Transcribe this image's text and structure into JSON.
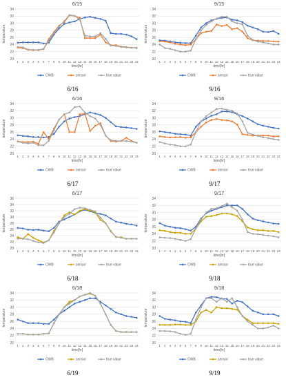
{
  "colors": {
    "CWB": "#4472c4",
    "sensor": "#ed7d31",
    "sensor_alt": "#c9a400",
    "true value": "#a5a5a5"
  },
  "chart_data": [
    {
      "type": "line",
      "title": "6/15",
      "caption": "6/16",
      "xlabel": "time[hr]",
      "ylabel": "temperature",
      "categories": [
        "1",
        "2",
        "3",
        "4",
        "5",
        "6",
        "7",
        "8",
        "9",
        "10",
        "11",
        "12",
        "13",
        "14",
        "15",
        "16",
        "17",
        "18",
        "19",
        "20",
        "21",
        "22",
        "23",
        "24"
      ],
      "ylim": [
        20,
        34
      ],
      "yticks": [
        "20",
        "22",
        "24",
        "26",
        "28",
        "30",
        "32",
        "34"
      ],
      "legend_position": "bottom",
      "grid": true,
      "sensor_color": "orange",
      "series": [
        {
          "name": "CWB",
          "values": [
            24.5,
            24.6,
            24.6,
            24.6,
            24.6,
            24.3,
            24.5,
            26.8,
            28.5,
            29.8,
            30.2,
            30.5,
            31.2,
            31.6,
            31.8,
            31.5,
            31.2,
            30.7,
            27.2,
            27.0,
            27.0,
            26.8,
            26.3,
            25.5
          ]
        },
        {
          "name": "sensor",
          "values": [
            23.1,
            23.0,
            22.5,
            22.4,
            22.4,
            22.7,
            25.5,
            27.5,
            29.3,
            30.3,
            32.2,
            32.0,
            31.5,
            25.8,
            25.8,
            25.8,
            26.8,
            24.6,
            23.8,
            23.8,
            23.4,
            23.3,
            23.1,
            23.1
          ]
        },
        {
          "name": "true value",
          "values": [
            23.3,
            23.2,
            22.6,
            22.5,
            22.5,
            22.8,
            25.0,
            27.2,
            29.0,
            30.6,
            32.3,
            32.1,
            31.0,
            26.5,
            26.3,
            26.3,
            27.2,
            25.6,
            23.7,
            23.6,
            23.3,
            23.2,
            23.1,
            23.0
          ]
        }
      ]
    },
    {
      "type": "line",
      "title": "9/15",
      "caption": "9/16",
      "xlabel": "time[hr]",
      "ylabel": "temperature",
      "categories": [
        "1",
        "2",
        "3",
        "4",
        "5",
        "6",
        "7",
        "8",
        "9",
        "10",
        "11",
        "12",
        "13",
        "14",
        "15",
        "16",
        "17",
        "18",
        "19",
        "20",
        "21",
        "22",
        "23",
        "24"
      ],
      "ylim": [
        20,
        34
      ],
      "yticks": [
        "20",
        "22",
        "24",
        "26",
        "28",
        "30",
        "32",
        "34"
      ],
      "legend_position": "bottom",
      "grid": true,
      "sensor_color": "orange",
      "series": [
        {
          "name": "CWB",
          "values": [
            25.2,
            25.1,
            24.9,
            24.6,
            24.5,
            24.4,
            24.4,
            26.5,
            28.8,
            30.0,
            30.8,
            31.2,
            31.5,
            31.6,
            31.0,
            30.8,
            30.3,
            29.3,
            28.8,
            28.3,
            27.6,
            27.5,
            27.8,
            27.0
          ]
        },
        {
          "name": "sensor",
          "values": [
            24.9,
            24.8,
            24.6,
            24.2,
            24.0,
            23.8,
            24.0,
            25.5,
            27.2,
            27.6,
            27.8,
            29.6,
            29.2,
            29.5,
            28.3,
            28.6,
            27.6,
            25.8,
            25.2,
            25.1,
            25.0,
            25.0,
            24.9,
            24.8
          ]
        },
        {
          "name": "true value",
          "values": [
            24.0,
            23.0,
            22.8,
            22.4,
            22.0,
            22.0,
            22.3,
            25.5,
            28.0,
            29.5,
            30.5,
            31.3,
            31.8,
            31.8,
            30.5,
            30.0,
            29.7,
            26.5,
            25.3,
            24.8,
            24.6,
            24.3,
            24.0,
            24.0
          ]
        }
      ]
    },
    {
      "type": "line",
      "title": "6/16",
      "caption": "6/17",
      "xlabel": "time[hr]",
      "ylabel": "temperature",
      "categories": [
        "1",
        "2",
        "3",
        "4",
        "5",
        "6",
        "7",
        "8",
        "9",
        "10",
        "11",
        "12",
        "13",
        "14",
        "15",
        "16",
        "17",
        "18",
        "19",
        "20",
        "21",
        "22",
        "23",
        "24"
      ],
      "ylim": [
        20,
        34
      ],
      "yticks": [
        "20",
        "22",
        "24",
        "26",
        "28",
        "30",
        "32",
        "34"
      ],
      "legend_position": "bottom",
      "grid": true,
      "sensor_color": "orange",
      "series": [
        {
          "name": "CWB",
          "values": [
            25.1,
            24.9,
            24.8,
            24.6,
            24.6,
            24.5,
            24.6,
            25.5,
            27.5,
            29.0,
            29.8,
            30.2,
            30.5,
            31.0,
            31.5,
            31.2,
            30.8,
            30.0,
            28.8,
            27.6,
            27.4,
            27.3,
            27.1,
            26.9
          ]
        },
        {
          "name": "sensor",
          "values": [
            23.4,
            23.2,
            23.2,
            23.3,
            22.7,
            26.0,
            24.0,
            27.0,
            29.5,
            31.0,
            26.0,
            26.0,
            31.0,
            31.2,
            26.3,
            27.8,
            28.5,
            25.0,
            23.5,
            23.3,
            23.5,
            24.4,
            23.5,
            23.0
          ]
        },
        {
          "name": "true value",
          "values": [
            23.3,
            23.0,
            22.8,
            23.0,
            22.3,
            22.3,
            23.5,
            26.5,
            29.5,
            31.0,
            31.5,
            33.0,
            33.2,
            31.5,
            30.5,
            29.8,
            28.0,
            25.0,
            23.7,
            23.5,
            23.5,
            23.5,
            23.3,
            23.0
          ]
        }
      ]
    },
    {
      "type": "line",
      "title": "9/16",
      "caption": "9/17",
      "xlabel": "time[hr]",
      "ylabel": "temperature",
      "categories": [
        "1",
        "2",
        "3",
        "4",
        "5",
        "6",
        "7",
        "8",
        "9",
        "10",
        "11",
        "12",
        "13",
        "14",
        "15",
        "16",
        "17",
        "18",
        "19",
        "20",
        "21",
        "22",
        "23",
        "24"
      ],
      "ylim": [
        20,
        34
      ],
      "yticks": [
        "20",
        "22",
        "24",
        "26",
        "28",
        "30",
        "32",
        "34"
      ],
      "legend_position": "bottom",
      "grid": true,
      "sensor_color": "orange",
      "series": [
        {
          "name": "CWB",
          "values": [
            26.2,
            26.0,
            25.8,
            25.5,
            25.4,
            25.3,
            25.0,
            27.5,
            29.0,
            29.8,
            30.6,
            31.0,
            31.8,
            31.8,
            31.6,
            31.0,
            30.5,
            29.8,
            29.0,
            28.2,
            27.8,
            27.5,
            27.2,
            27.0
          ]
        },
        {
          "name": "sensor",
          "values": [
            24.8,
            24.6,
            24.5,
            24.5,
            24.6,
            24.4,
            24.5,
            26.0,
            27.5,
            28.7,
            29.4,
            29.7,
            29.4,
            29.3,
            29.0,
            28.1,
            25.4,
            25.2,
            25.0,
            25.0,
            25.0,
            25.0,
            24.8,
            24.8
          ]
        },
        {
          "name": "true value",
          "values": [
            23.2,
            22.8,
            22.5,
            22.3,
            22.0,
            22.0,
            22.5,
            26.0,
            29.0,
            30.5,
            31.5,
            32.5,
            32.6,
            32.3,
            32.0,
            31.2,
            29.0,
            25.8,
            25.3,
            24.9,
            24.5,
            24.3,
            24.0,
            23.8
          ]
        }
      ]
    },
    {
      "type": "line",
      "title": "6/17",
      "caption": "6/18",
      "xlabel": "time[hr]",
      "ylabel": "temperature",
      "categories": [
        "1",
        "2",
        "3",
        "4",
        "5",
        "6",
        "7",
        "8",
        "9",
        "10",
        "11",
        "12",
        "13",
        "14",
        "15",
        "16",
        "17",
        "18",
        "19",
        "20",
        "21",
        "22",
        "23",
        "24"
      ],
      "ylim": [
        20,
        36
      ],
      "yticks": [
        "20",
        "22",
        "24",
        "26",
        "28",
        "30",
        "32",
        "34",
        "36"
      ],
      "legend_position": "bottom",
      "grid": true,
      "sensor_color": "gold",
      "series": [
        {
          "name": "CWB",
          "values": [
            26.5,
            26.3,
            25.9,
            25.8,
            25.9,
            25.6,
            25.4,
            26.5,
            28.5,
            29.2,
            30.0,
            30.8,
            31.8,
            32.3,
            31.8,
            31.3,
            31.0,
            30.5,
            29.5,
            28.5,
            28.2,
            27.8,
            27.6,
            27.2
          ]
        },
        {
          "name": "sensor",
          "values": [
            23.5,
            23.0,
            24.5,
            23.3,
            22.5,
            21.8,
            22.5,
            25.5,
            28.0,
            30.5,
            31.5,
            30.8,
            32.0,
            32.5,
            32.0,
            31.5,
            29.0,
            28.0,
            25.5,
            23.5,
            23.5,
            23.0,
            23.0,
            23.0
          ]
        },
        {
          "name": "true value",
          "values": [
            23.0,
            23.0,
            22.8,
            22.3,
            21.8,
            21.6,
            22.5,
            25.0,
            28.0,
            30.0,
            31.0,
            32.5,
            33.0,
            32.8,
            32.3,
            31.8,
            29.8,
            28.0,
            25.3,
            23.6,
            23.3,
            23.0,
            23.0,
            23.0
          ]
        }
      ]
    },
    {
      "type": "line",
      "title": "9/17",
      "caption": "9/18",
      "xlabel": "time[hr]",
      "ylabel": "temperature",
      "categories": [
        "1",
        "2",
        "3",
        "4",
        "5",
        "6",
        "7",
        "8",
        "9",
        "10",
        "11",
        "12",
        "13",
        "14",
        "15",
        "16",
        "17",
        "18",
        "19",
        "20",
        "21",
        "22",
        "23",
        "24"
      ],
      "ylim": [
        20,
        34
      ],
      "yticks": [
        "20",
        "22",
        "24",
        "26",
        "28",
        "30",
        "32",
        "34"
      ],
      "legend_position": "bottom",
      "grid": true,
      "sensor_color": "gold",
      "series": [
        {
          "name": "CWB",
          "values": [
            27.0,
            26.3,
            26.0,
            25.7,
            25.6,
            25.3,
            24.9,
            26.0,
            28.3,
            29.8,
            30.5,
            31.0,
            31.5,
            32.0,
            32.0,
            32.0,
            31.0,
            29.5,
            28.3,
            27.8,
            27.5,
            27.2,
            26.9,
            26.8
          ]
        },
        {
          "name": "sensor",
          "values": [
            25.0,
            24.8,
            24.5,
            24.3,
            24.3,
            24.0,
            24.0,
            25.5,
            27.5,
            28.8,
            29.0,
            29.3,
            29.7,
            29.7,
            29.5,
            29.0,
            27.5,
            25.8,
            25.3,
            25.0,
            25.0,
            24.8,
            24.8,
            24.5
          ]
        },
        {
          "name": "true value",
          "values": [
            23.0,
            22.9,
            22.8,
            22.6,
            22.3,
            22.0,
            22.5,
            25.5,
            28.0,
            30.0,
            31.0,
            31.2,
            31.8,
            32.5,
            31.5,
            30.5,
            28.0,
            24.5,
            24.0,
            23.9,
            23.7,
            23.5,
            23.3,
            23.0
          ]
        }
      ]
    },
    {
      "type": "line",
      "title": "6/18",
      "caption": "6/19",
      "xlabel": "time[hr]",
      "ylabel": "temperature",
      "categories": [
        "1",
        "2",
        "3",
        "4",
        "5",
        "6",
        "7",
        "8",
        "9",
        "10",
        "11",
        "12",
        "13",
        "14",
        "15",
        "16",
        "17",
        "18",
        "19",
        "20",
        "21",
        "22",
        "23",
        "24"
      ],
      "ylim": [
        20,
        34
      ],
      "yticks": [
        "20",
        "22",
        "24",
        "26",
        "28",
        "30",
        "32",
        "34"
      ],
      "legend_position": "bottom",
      "grid": true,
      "sensor_color": "gold",
      "series": [
        {
          "name": "CWB",
          "values": [
            26.5,
            26.0,
            25.5,
            25.5,
            25.5,
            25.3,
            25.3,
            26.5,
            28.0,
            29.0,
            30.0,
            31.0,
            31.5,
            32.0,
            32.5,
            32.5,
            31.5,
            30.5,
            29.5,
            28.5,
            28.0,
            27.5,
            27.3,
            27.0
          ]
        },
        {
          "name": "sensor",
          "values": [
            22.5,
            22.5,
            22.3,
            22.3,
            22.3,
            22.5,
            22.6,
            25.5,
            28.0,
            30.0,
            31.5,
            32.0,
            33.0,
            33.5,
            33.8,
            33.2,
            31.0,
            28.0,
            25.0,
            23.3,
            23.0,
            23.0,
            23.0,
            23.0
          ]
        },
        {
          "name": "true value",
          "values": [
            22.5,
            22.5,
            22.3,
            22.3,
            22.3,
            22.5,
            22.6,
            25.5,
            28.0,
            30.0,
            31.0,
            32.0,
            33.0,
            33.5,
            34.0,
            33.2,
            31.0,
            28.0,
            25.0,
            23.3,
            23.0,
            23.0,
            23.0,
            23.0
          ]
        }
      ]
    },
    {
      "type": "line",
      "title": "9/18",
      "caption": "9/19",
      "xlabel": "time[hr]",
      "ylabel": "temperature",
      "categories": [
        "1",
        "2",
        "3",
        "4",
        "5",
        "6",
        "7",
        "8",
        "9",
        "10",
        "11",
        "12",
        "13",
        "14",
        "15",
        "16",
        "17",
        "18",
        "19",
        "20",
        "21",
        "22",
        "23",
        "24"
      ],
      "ylim": [
        20,
        34
      ],
      "yticks": [
        "20",
        "22",
        "24",
        "26",
        "28",
        "30",
        "32",
        "34"
      ],
      "legend_position": "bottom",
      "grid": true,
      "sensor_color": "gold",
      "series": [
        {
          "name": "CWB",
          "values": [
            27.5,
            26.7,
            26.5,
            26.3,
            26.0,
            25.9,
            25.5,
            28.5,
            30.5,
            32.5,
            32.9,
            32.8,
            32.4,
            32.3,
            31.0,
            31.8,
            31.4,
            30.2,
            29.0,
            28.5,
            28.0,
            28.0,
            28.0,
            27.5
          ]
        },
        {
          "name": "sensor",
          "values": [
            25.0,
            25.0,
            25.0,
            25.1,
            25.1,
            25.0,
            25.0,
            26.0,
            28.5,
            29.2,
            28.5,
            30.0,
            29.7,
            29.7,
            29.5,
            29.3,
            27.5,
            26.5,
            25.5,
            25.5,
            25.5,
            25.5,
            25.5,
            25.3
          ]
        },
        {
          "name": "true value",
          "values": [
            23.3,
            23.3,
            23.2,
            23.0,
            22.5,
            22.2,
            22.5,
            26.5,
            30.0,
            32.5,
            32.5,
            31.5,
            32.5,
            31.5,
            32.5,
            30.0,
            27.5,
            26.0,
            25.0,
            24.0,
            24.0,
            24.3,
            24.8,
            24.0
          ]
        }
      ]
    }
  ]
}
